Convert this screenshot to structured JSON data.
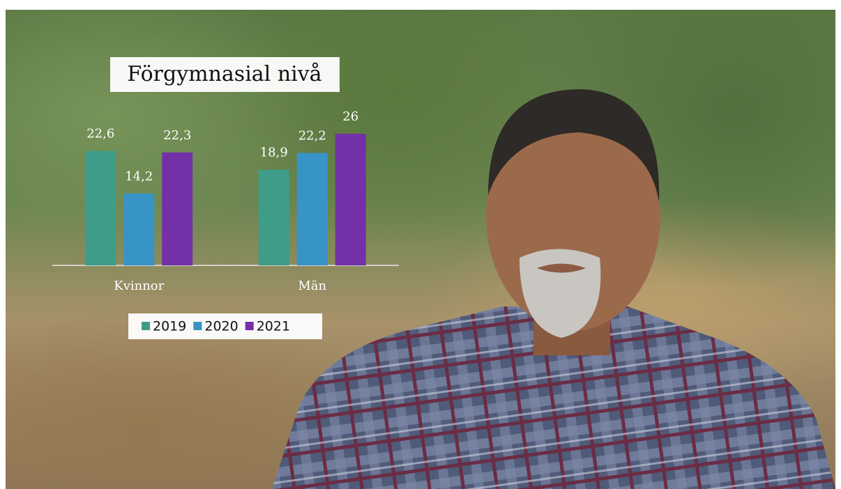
{
  "chart_data": {
    "type": "bar",
    "title": "Förgymnasial nivå",
    "categories": [
      "Kvinnor",
      "Män"
    ],
    "series": [
      {
        "name": "2019",
        "color": "#3f9c89",
        "values": [
          22.6,
          18.9
        ],
        "value_labels": [
          "22,6",
          "18,9"
        ]
      },
      {
        "name": "2020",
        "color": "#3893c7",
        "values": [
          14.2,
          22.2
        ],
        "value_labels": [
          "14,2",
          "22,2"
        ]
      },
      {
        "name": "2021",
        "color": "#7330a7",
        "values": [
          22.3,
          26
        ],
        "value_labels": [
          "22,3",
          "26"
        ]
      }
    ],
    "legend": "bottom"
  }
}
